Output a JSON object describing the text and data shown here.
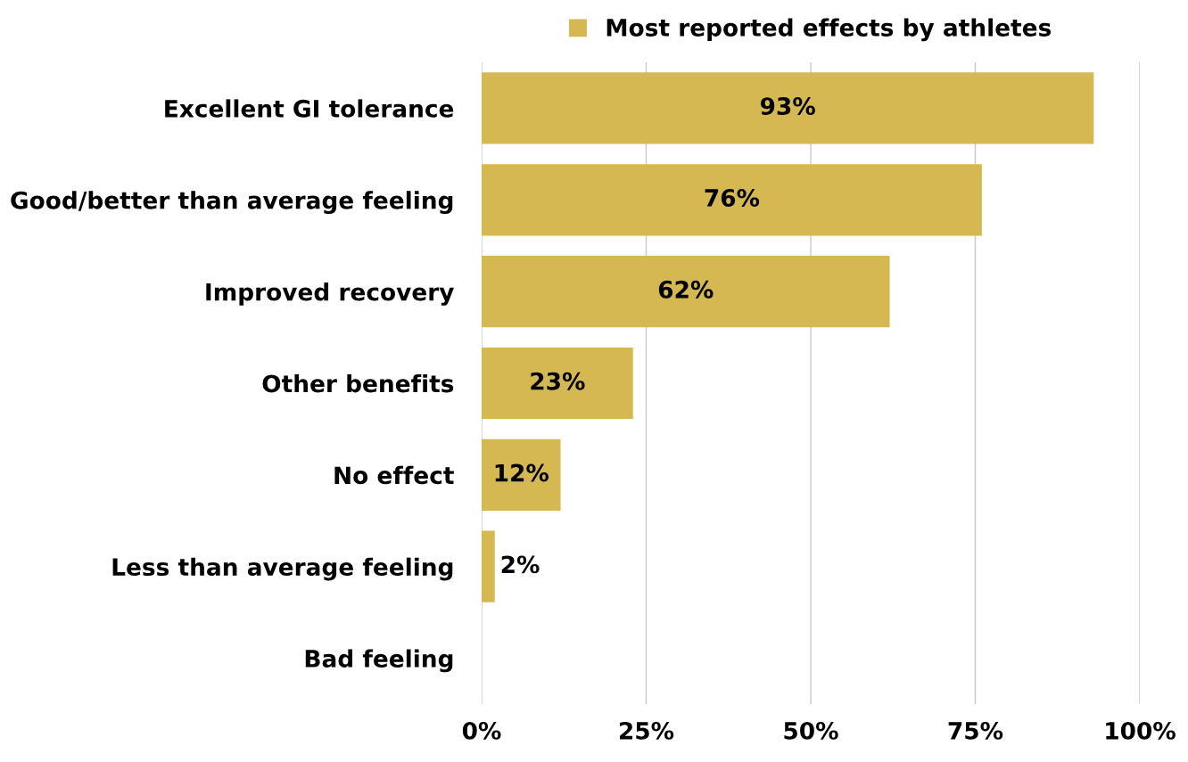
{
  "chart_data": {
    "type": "bar",
    "orientation": "horizontal",
    "categories": [
      "Excellent GI tolerance",
      "Good/better than average feeling",
      "Improved recovery",
      "Other benefits",
      "No effect",
      "Less than average feeling",
      "Bad feeling"
    ],
    "series": [
      {
        "name": "Most reported effects by athletes",
        "color": "#d6b853",
        "values": [
          93,
          76,
          62,
          23,
          12,
          2,
          0
        ],
        "value_labels": [
          "93%",
          "76%",
          "62%",
          "23%",
          "12%",
          "2%",
          null
        ]
      }
    ],
    "xlim": [
      0,
      100
    ],
    "xticks": [
      {
        "value": 0,
        "label": "0%"
      },
      {
        "value": 25,
        "label": "25%"
      },
      {
        "value": 50,
        "label": "50%"
      },
      {
        "value": 75,
        "label": "75%"
      },
      {
        "value": 100,
        "label": "100%"
      }
    ],
    "grid": "x",
    "legend": "top"
  }
}
